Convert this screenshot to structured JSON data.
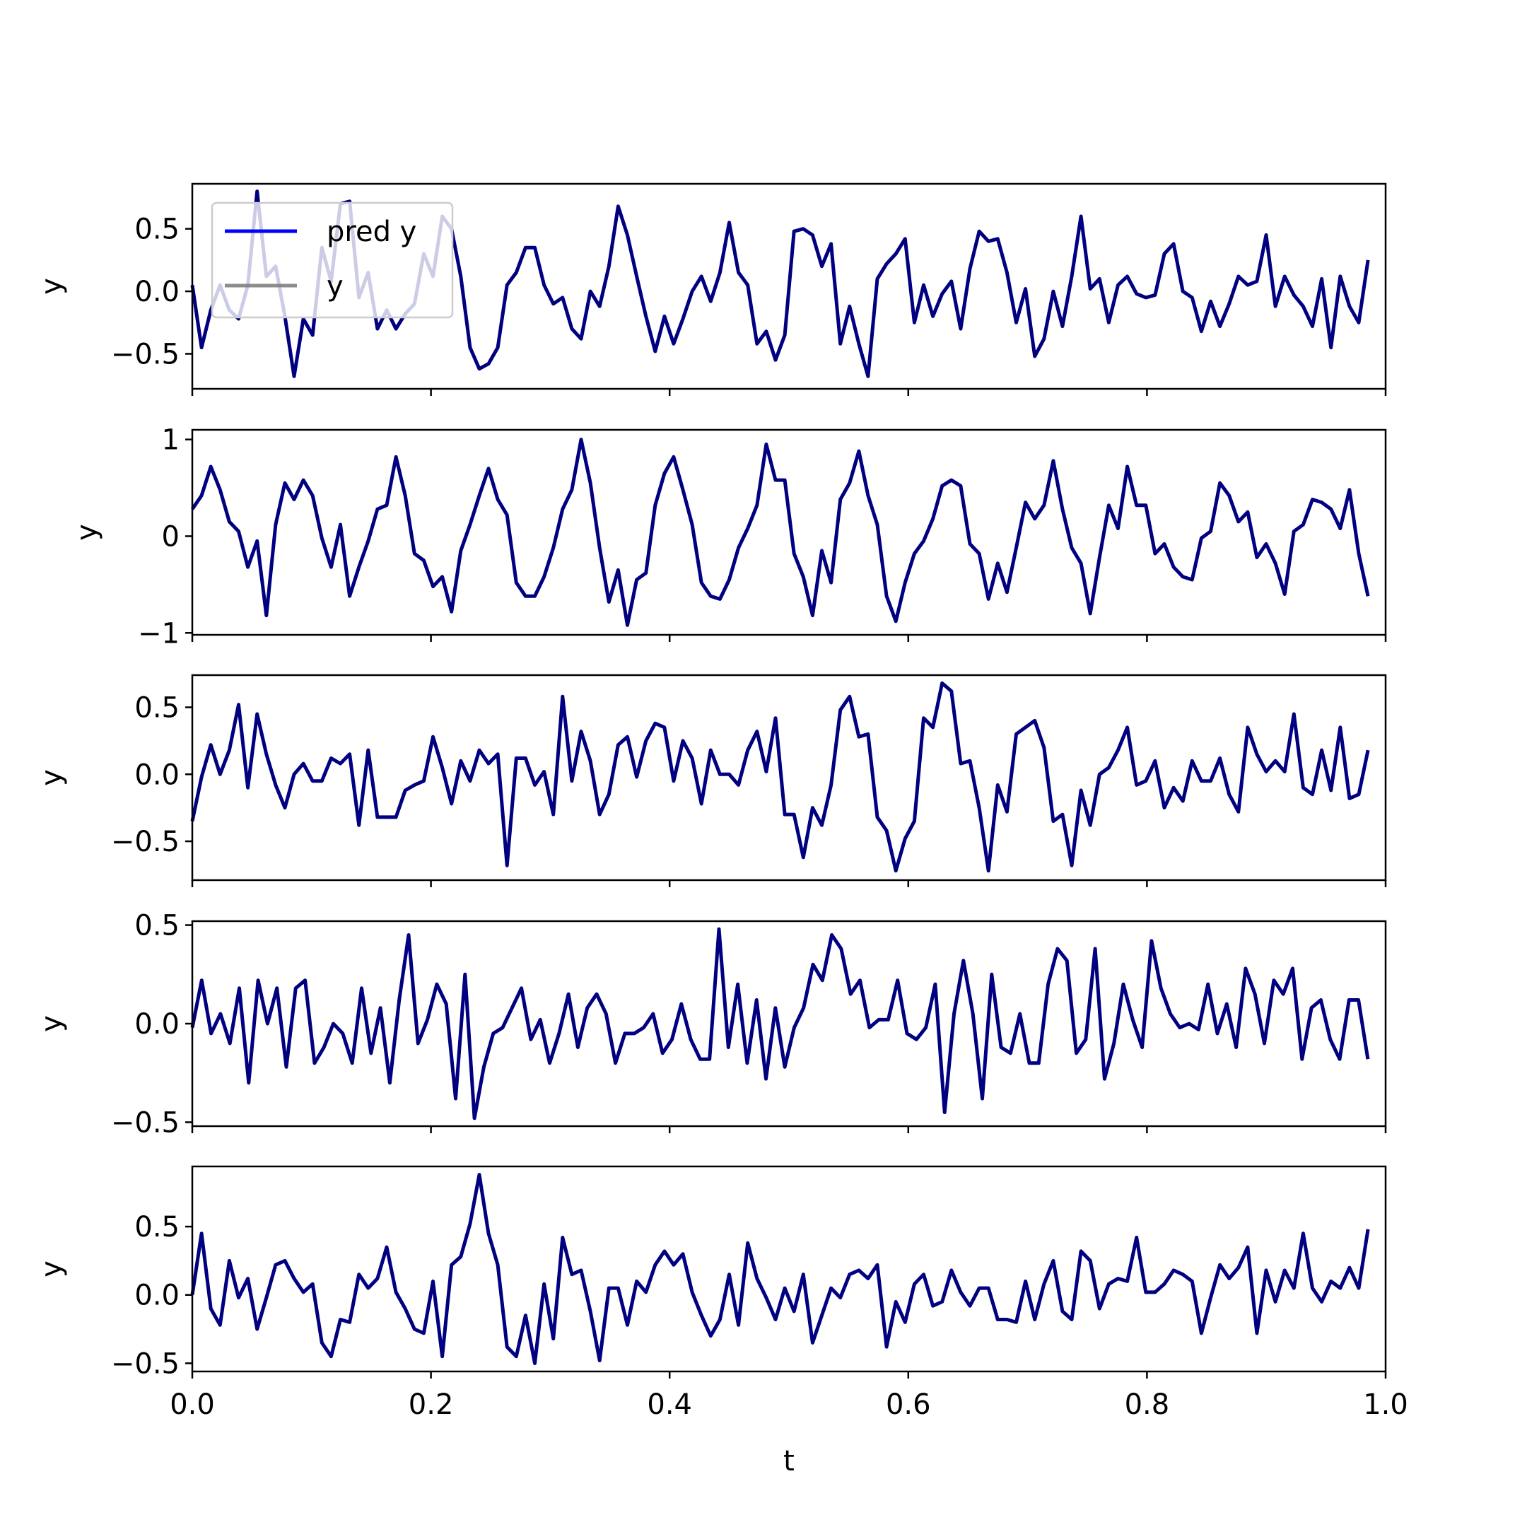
{
  "colors": {
    "pred": "#0000ff",
    "y": "#808080",
    "line": "#000080",
    "frame": "#000000"
  },
  "chart_data": [
    {
      "type": "line",
      "ylabel": "y",
      "xlim": [
        0.0,
        1.0
      ],
      "ylim": [
        -0.78,
        0.86
      ],
      "yticks": [
        -0.5,
        0.0,
        0.5
      ],
      "ytick_labels": [
        "−0.5",
        "0.0",
        "0.5"
      ],
      "xtick_labels": [
        "",
        "",
        "",
        "",
        "",
        ""
      ],
      "legend": {
        "position": "upper-left",
        "entries": [
          {
            "label": "pred y",
            "color": "#0000ff"
          },
          {
            "label": "y",
            "color": "#808080"
          }
        ]
      },
      "series": [
        {
          "values": [
            0.05,
            -0.45,
            -0.15,
            0.05,
            -0.15,
            -0.22,
            0.05,
            0.8,
            0.12,
            0.2,
            -0.2,
            -0.68,
            -0.22,
            -0.35,
            0.35,
            0.08,
            0.7,
            0.72,
            -0.05,
            0.15,
            -0.3,
            -0.15,
            -0.3,
            -0.18,
            -0.1,
            0.3,
            0.12,
            0.6,
            0.5,
            0.12,
            -0.45,
            -0.62,
            -0.58,
            -0.45,
            0.05,
            0.15,
            0.35,
            0.35,
            0.05,
            -0.1,
            -0.05,
            -0.3,
            -0.38,
            0.0,
            -0.12,
            0.2,
            0.68,
            0.45,
            0.12,
            -0.2,
            -0.48,
            -0.2,
            -0.42,
            -0.22,
            0.0,
            0.12,
            -0.08,
            0.15,
            0.55,
            0.15,
            0.05,
            -0.42,
            -0.32,
            -0.55,
            -0.35,
            0.48,
            0.5,
            0.45,
            0.2,
            0.38,
            -0.42,
            -0.12,
            -0.42,
            -0.68,
            0.1,
            0.22,
            0.3,
            0.42,
            -0.25,
            0.05,
            -0.2,
            -0.02,
            0.08,
            -0.3,
            0.18,
            0.48,
            0.4,
            0.42,
            0.15,
            -0.25,
            0.02,
            -0.52,
            -0.38,
            0.0,
            -0.28,
            0.12,
            0.6,
            0.02,
            0.1,
            -0.25,
            0.05,
            0.12,
            -0.02,
            -0.05,
            -0.03,
            0.3,
            0.38,
            0.0,
            -0.05,
            -0.32,
            -0.08,
            -0.28,
            -0.1,
            0.12,
            0.05,
            0.08,
            0.45,
            -0.12,
            0.12,
            -0.03,
            -0.12,
            -0.28,
            0.1,
            -0.45,
            0.12,
            -0.12,
            -0.25,
            0.25
          ]
        }
      ]
    },
    {
      "type": "line",
      "ylabel": "y",
      "xlim": [
        0.0,
        1.0
      ],
      "ylim": [
        -1.02,
        1.1
      ],
      "yticks": [
        -1,
        0,
        1
      ],
      "ytick_labels": [
        "−1",
        "0",
        "1"
      ],
      "xtick_labels": [
        "",
        "",
        "",
        "",
        "",
        ""
      ],
      "series": [
        {
          "values": [
            0.28,
            0.42,
            0.72,
            0.48,
            0.15,
            0.05,
            -0.32,
            -0.05,
            -0.82,
            0.12,
            0.55,
            0.38,
            0.58,
            0.42,
            -0.02,
            -0.32,
            0.12,
            -0.62,
            -0.32,
            -0.05,
            0.28,
            0.32,
            0.82,
            0.42,
            -0.18,
            -0.25,
            -0.52,
            -0.42,
            -0.78,
            -0.15,
            0.12,
            0.42,
            0.7,
            0.38,
            0.22,
            -0.48,
            -0.62,
            -0.62,
            -0.42,
            -0.12,
            0.28,
            0.48,
            1.0,
            0.55,
            -0.12,
            -0.68,
            -0.35,
            -0.92,
            -0.45,
            -0.38,
            0.32,
            0.65,
            0.82,
            0.48,
            0.12,
            -0.48,
            -0.62,
            -0.65,
            -0.45,
            -0.12,
            0.08,
            0.32,
            0.95,
            0.58,
            0.58,
            -0.18,
            -0.42,
            -0.82,
            -0.15,
            -0.48,
            0.38,
            0.55,
            0.88,
            0.42,
            0.12,
            -0.62,
            -0.88,
            -0.48,
            -0.18,
            -0.05,
            0.18,
            0.52,
            0.58,
            0.52,
            -0.08,
            -0.18,
            -0.65,
            -0.28,
            -0.58,
            -0.12,
            0.35,
            0.18,
            0.32,
            0.78,
            0.28,
            -0.12,
            -0.28,
            -0.8,
            -0.22,
            0.32,
            0.08,
            0.72,
            0.32,
            0.32,
            -0.18,
            -0.08,
            -0.32,
            -0.42,
            -0.45,
            -0.02,
            0.05,
            0.55,
            0.42,
            0.15,
            0.25,
            -0.22,
            -0.08,
            -0.28,
            -0.6,
            0.05,
            0.12,
            0.38,
            0.35,
            0.28,
            0.08,
            0.48,
            -0.18,
            -0.62
          ]
        }
      ]
    },
    {
      "type": "line",
      "ylabel": "y",
      "xlim": [
        0.0,
        1.0
      ],
      "ylim": [
        -0.79,
        0.74
      ],
      "yticks": [
        -0.5,
        0.0,
        0.5
      ],
      "ytick_labels": [
        "−0.5",
        "0.0",
        "0.5"
      ],
      "xtick_labels": [
        "",
        "",
        "",
        "",
        "",
        ""
      ],
      "series": [
        {
          "values": [
            -0.35,
            -0.02,
            0.22,
            0.0,
            0.18,
            0.52,
            -0.1,
            0.45,
            0.15,
            -0.08,
            -0.25,
            0.0,
            0.08,
            -0.05,
            -0.05,
            0.12,
            0.08,
            0.15,
            -0.38,
            0.18,
            -0.32,
            -0.32,
            -0.32,
            -0.12,
            -0.08,
            -0.05,
            0.28,
            0.05,
            -0.22,
            0.1,
            -0.05,
            0.18,
            0.08,
            0.15,
            -0.68,
            0.12,
            0.12,
            -0.08,
            0.02,
            -0.3,
            0.58,
            -0.05,
            0.32,
            0.1,
            -0.3,
            -0.15,
            0.22,
            0.28,
            -0.02,
            0.25,
            0.38,
            0.35,
            -0.05,
            0.25,
            0.12,
            -0.22,
            0.18,
            0.0,
            0.0,
            -0.08,
            0.18,
            0.32,
            0.02,
            0.42,
            -0.3,
            -0.3,
            -0.62,
            -0.25,
            -0.38,
            -0.08,
            0.48,
            0.58,
            0.28,
            0.3,
            -0.32,
            -0.42,
            -0.72,
            -0.48,
            -0.35,
            0.42,
            0.35,
            0.68,
            0.62,
            0.08,
            0.1,
            -0.25,
            -0.72,
            -0.08,
            -0.28,
            0.3,
            0.35,
            0.4,
            0.2,
            -0.35,
            -0.3,
            -0.68,
            -0.12,
            -0.38,
            0.0,
            0.05,
            0.18,
            0.35,
            -0.08,
            -0.05,
            0.1,
            -0.25,
            -0.1,
            -0.2,
            0.1,
            -0.05,
            -0.05,
            0.12,
            -0.15,
            -0.28,
            0.35,
            0.15,
            0.02,
            0.1,
            0.02,
            0.45,
            -0.1,
            -0.15,
            0.18,
            -0.12,
            0.35,
            -0.18,
            -0.15,
            0.18
          ]
        }
      ]
    },
    {
      "type": "line",
      "ylabel": "y",
      "xlim": [
        0.0,
        1.0
      ],
      "ylim": [
        -0.52,
        0.52
      ],
      "yticks": [
        -0.5,
        0.0,
        0.5
      ],
      "ytick_labels": [
        "−0.5",
        "0.0",
        "0.5"
      ],
      "xtick_labels": [
        "",
        "",
        "",
        "",
        "",
        ""
      ],
      "series": [
        {
          "values": [
            -0.02,
            0.22,
            -0.05,
            0.05,
            -0.1,
            0.18,
            -0.3,
            0.22,
            0.0,
            0.18,
            -0.22,
            0.18,
            0.22,
            -0.2,
            -0.12,
            0.0,
            -0.05,
            -0.2,
            0.18,
            -0.15,
            0.08,
            -0.3,
            0.12,
            0.45,
            -0.1,
            0.02,
            0.2,
            0.1,
            -0.38,
            0.25,
            -0.48,
            -0.22,
            -0.05,
            -0.02,
            0.08,
            0.18,
            -0.08,
            0.02,
            -0.2,
            -0.05,
            0.15,
            -0.12,
            0.08,
            0.15,
            0.05,
            -0.2,
            -0.05,
            -0.05,
            -0.02,
            0.05,
            -0.15,
            -0.08,
            0.1,
            -0.08,
            -0.18,
            -0.18,
            0.48,
            -0.12,
            0.2,
            -0.2,
            0.12,
            -0.28,
            0.08,
            -0.22,
            -0.02,
            0.08,
            0.3,
            0.22,
            0.45,
            0.38,
            0.15,
            0.22,
            -0.02,
            0.02,
            0.02,
            0.22,
            -0.05,
            -0.08,
            -0.02,
            0.2,
            -0.45,
            0.05,
            0.32,
            0.05,
            -0.38,
            0.25,
            -0.12,
            -0.15,
            0.05,
            -0.2,
            -0.2,
            0.2,
            0.38,
            0.32,
            -0.15,
            -0.08,
            0.38,
            -0.28,
            -0.1,
            0.2,
            0.02,
            -0.12,
            0.42,
            0.18,
            0.05,
            -0.02,
            0.0,
            -0.03,
            0.2,
            -0.05,
            0.1,
            -0.12,
            0.28,
            0.15,
            -0.1,
            0.22,
            0.15,
            0.28,
            -0.18,
            0.08,
            0.12,
            -0.08,
            -0.18,
            0.12,
            0.12,
            -0.18
          ]
        }
      ]
    },
    {
      "type": "line",
      "ylabel": "y",
      "xlabel": "t",
      "xlim": [
        0.0,
        1.0
      ],
      "ylim": [
        -0.56,
        0.94
      ],
      "yticks": [
        -0.5,
        0.0,
        0.5
      ],
      "ytick_labels": [
        "−0.5",
        "0.0",
        "0.5"
      ],
      "xticks": [
        0.0,
        0.2,
        0.4,
        0.6,
        0.8,
        1.0
      ],
      "xtick_labels": [
        "0.0",
        "0.2",
        "0.4",
        "0.6",
        "0.8",
        "1.0"
      ],
      "series": [
        {
          "values": [
            0.0,
            0.45,
            -0.1,
            -0.22,
            0.25,
            -0.02,
            0.12,
            -0.25,
            -0.02,
            0.22,
            0.25,
            0.12,
            0.02,
            0.08,
            -0.35,
            -0.45,
            -0.18,
            -0.2,
            0.15,
            0.05,
            0.12,
            0.35,
            0.02,
            -0.1,
            -0.25,
            -0.28,
            0.1,
            -0.45,
            0.22,
            0.28,
            0.52,
            0.88,
            0.45,
            0.22,
            -0.38,
            -0.45,
            -0.15,
            -0.5,
            0.08,
            -0.32,
            0.42,
            0.15,
            0.18,
            -0.12,
            -0.48,
            0.05,
            0.05,
            -0.22,
            0.1,
            0.02,
            0.22,
            0.32,
            0.22,
            0.3,
            0.02,
            -0.15,
            -0.3,
            -0.18,
            0.15,
            -0.22,
            0.38,
            0.12,
            -0.02,
            -0.18,
            0.05,
            -0.12,
            0.15,
            -0.35,
            -0.15,
            0.05,
            -0.02,
            0.15,
            0.18,
            0.12,
            0.22,
            -0.38,
            -0.05,
            -0.2,
            0.08,
            0.15,
            -0.08,
            -0.05,
            0.18,
            0.02,
            -0.08,
            0.05,
            0.05,
            -0.18,
            -0.18,
            -0.2,
            0.1,
            -0.18,
            0.08,
            0.25,
            -0.12,
            -0.18,
            0.32,
            0.25,
            -0.1,
            0.08,
            0.12,
            0.1,
            0.42,
            0.02,
            0.02,
            0.08,
            0.18,
            0.15,
            0.1,
            -0.28,
            -0.02,
            0.22,
            0.12,
            0.2,
            0.35,
            -0.28,
            0.18,
            -0.05,
            0.18,
            0.05,
            0.45,
            0.05,
            -0.05,
            0.1,
            0.05,
            0.2,
            0.05,
            0.48
          ]
        }
      ]
    }
  ]
}
